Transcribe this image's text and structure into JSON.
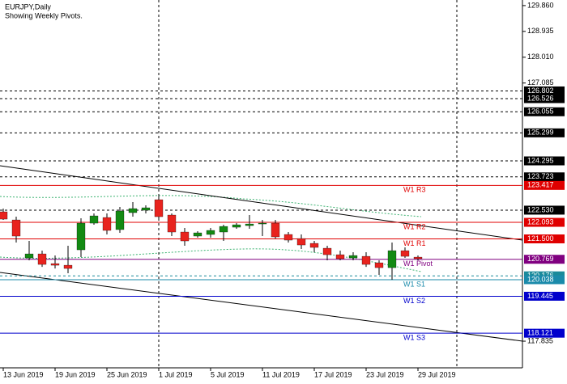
{
  "chart_data": {
    "type": "candlestick",
    "title": "EURJPY,Daily",
    "subtitle": "Showing Weekly Pivots.",
    "categories": [
      "13 Jun 2019",
      null,
      null,
      null,
      "19 Jun 2019",
      null,
      null,
      null,
      "25 Jun 2019",
      null,
      null,
      null,
      "1 Jul 2019",
      null,
      null,
      null,
      "5 Jul 2019",
      null,
      null,
      null,
      "11 Jul 2019",
      null,
      null,
      null,
      "17 Jul 2019",
      null,
      null,
      null,
      "23 Jul 2019",
      null,
      null,
      null,
      "29 Jul 2019"
    ],
    "open": [
      122.47,
      122.18,
      120.818,
      120.963,
      120.615,
      120.557,
      121.108,
      122.064,
      122.267,
      121.833,
      122.441,
      122.528,
      122.905,
      122.354,
      121.746,
      121.601,
      121.659,
      121.746,
      121.919,
      121.977,
      122.035,
      122.064,
      121.659,
      121.514,
      121.34,
      121.166,
      120.934,
      120.818,
      120.876,
      120.644,
      120.47,
      121.079,
      120.847
    ],
    "high": [
      122.586,
      122.296,
      121.427,
      121.079,
      120.905,
      121.253,
      122.238,
      122.412,
      122.412,
      122.644,
      122.818,
      122.702,
      123.108,
      122.412,
      121.89,
      121.775,
      121.89,
      122.006,
      122.064,
      122.354,
      122.18,
      122.18,
      121.746,
      121.659,
      121.427,
      121.253,
      121.079,
      121.021,
      121.021,
      120.731,
      121.369,
      121.195,
      120.905
    ],
    "low": [
      122.18,
      121.369,
      120.731,
      120.499,
      120.441,
      120.268,
      120.847,
      122.006,
      121.659,
      121.717,
      122.296,
      122.412,
      122.18,
      121.601,
      121.253,
      121.543,
      121.543,
      121.427,
      121.862,
      121.862,
      121.601,
      121.514,
      121.369,
      121.137,
      121.021,
      120.731,
      120.731,
      120.731,
      120.499,
      120.21,
      120.036,
      120.818,
      120.731
    ],
    "close": [
      122.209,
      121.601,
      120.963,
      120.586,
      120.557,
      120.441,
      122.064,
      122.325,
      121.804,
      122.499,
      122.586,
      122.615,
      122.296,
      121.746,
      121.427,
      121.717,
      121.804,
      121.948,
      122.006,
      122.035,
      122.064,
      121.572,
      121.456,
      121.282,
      121.195,
      120.934,
      120.789,
      120.905,
      120.586,
      120.47,
      121.079,
      120.876,
      120.789
    ],
    "up_color": "#138a13",
    "down_color": "#e8231e",
    "ylim": [
      116.88,
      130.06
    ],
    "yticks": [
      {
        "value": 129.86,
        "label": "129.860"
      },
      {
        "value": 128.935,
        "label": "128.935"
      },
      {
        "value": 128.01,
        "label": "128.010"
      },
      {
        "value": 127.085,
        "label": "127.085"
      },
      {
        "value": 117.835,
        "label": "117.835"
      }
    ],
    "grid": false,
    "levels": [
      {
        "value": 126.802,
        "label": "126.802",
        "color": "#000000",
        "style": "dashed"
      },
      {
        "value": 126.526,
        "label": "126.526",
        "color": "#000000",
        "style": "dashed"
      },
      {
        "value": 126.055,
        "label": "126.055",
        "color": "#000000",
        "style": "dashed"
      },
      {
        "value": 125.299,
        "label": "125.299",
        "color": "#000000",
        "style": "dashed"
      },
      {
        "value": 124.295,
        "label": "124.295",
        "color": "#000000",
        "style": "dashed"
      },
      {
        "value": 123.723,
        "label": "123.723",
        "color": "#000000",
        "style": "dashed"
      },
      {
        "value": 122.53,
        "label": "122.530",
        "color": "#000000",
        "style": "dashed"
      },
      {
        "value": 120.176,
        "label": "120.176",
        "color": "#1a8a9a",
        "style": "dashed"
      },
      {
        "name": "W1 R3",
        "value": 123.417,
        "label": "123.417",
        "color": "#e00000",
        "style": "solid"
      },
      {
        "name": "W1 R2",
        "value": 122.093,
        "label": "122.093",
        "color": "#e00000",
        "style": "solid"
      },
      {
        "name": "W1 R1",
        "value": 121.5,
        "label": "121.500",
        "color": "#e00000",
        "style": "solid"
      },
      {
        "name": "W1 Pivot",
        "value": 120.769,
        "label": "120.769",
        "color": "#800080",
        "style": "solid"
      },
      {
        "name": "W1 S1",
        "value": 120.038,
        "label": "120.038",
        "color": "#1a8aaa",
        "style": "solid"
      },
      {
        "name": "W1 S2",
        "value": 119.445,
        "label": "119.445",
        "color": "#0000cc",
        "style": "solid"
      },
      {
        "name": "W1 S3",
        "value": 118.121,
        "label": "118.121",
        "color": "#0000cc",
        "style": "solid"
      }
    ]
  }
}
